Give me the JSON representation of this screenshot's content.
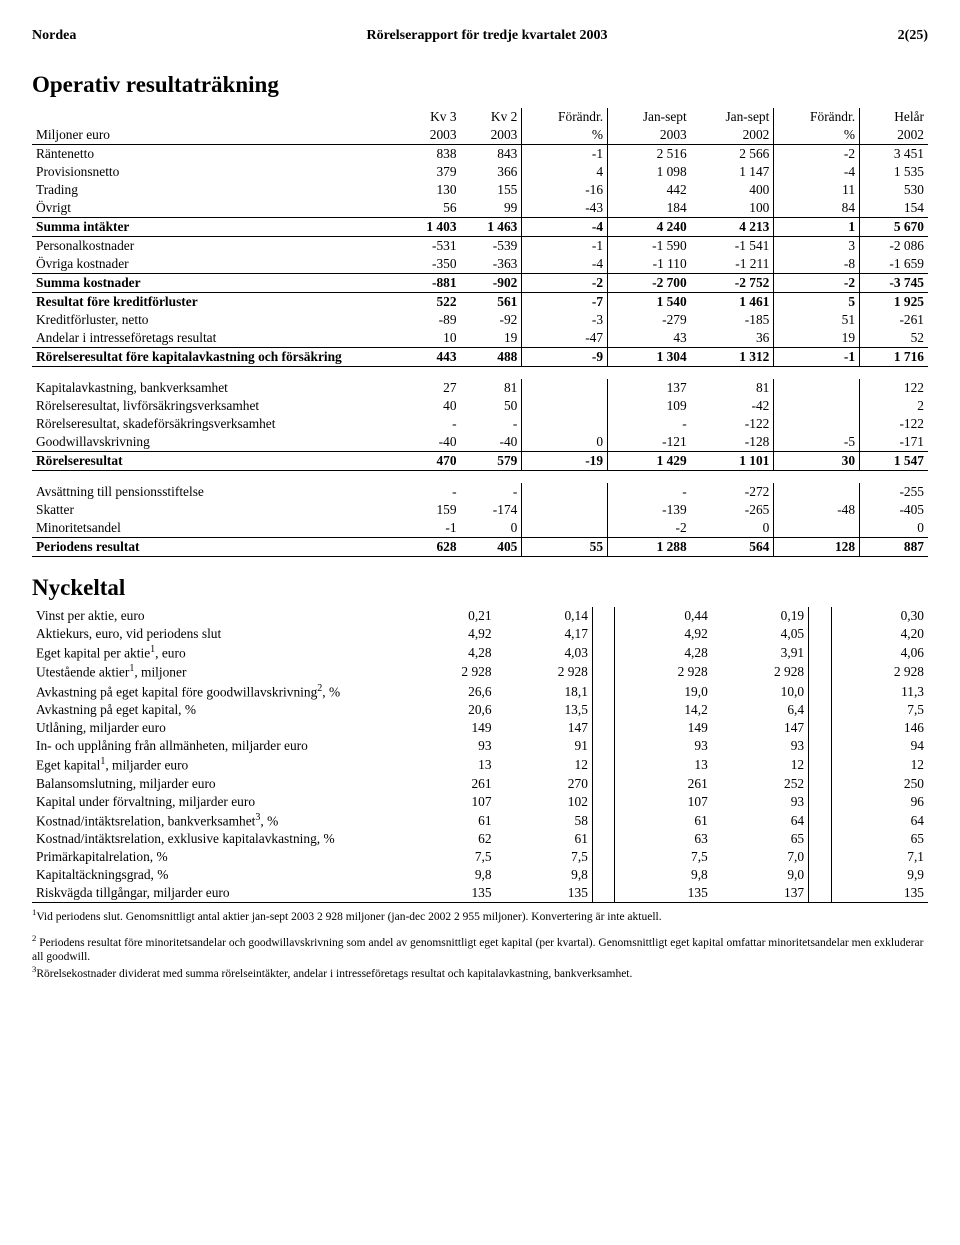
{
  "header": {
    "brand": "Nordea",
    "title": "Rörelserapport för tredje kvartalet 2003",
    "page": "2(25)"
  },
  "section_a": {
    "title": "Operativ resultaträkning",
    "col_headers_top": [
      "",
      "Kv 3",
      "Kv 2",
      "Förändr.",
      "Jan-sept",
      "Jan-sept",
      "Förändr.",
      "Helår"
    ],
    "col_headers_bottom": [
      "Miljoner euro",
      "2003",
      "2003",
      "%",
      "2003",
      "2002",
      "%",
      "2002"
    ],
    "rows": [
      {
        "label": "Räntenetto",
        "vals": [
          "838",
          "843",
          "-1",
          "2 516",
          "2 566",
          "-2",
          "3 451"
        ]
      },
      {
        "label": "Provisionsnetto",
        "vals": [
          "379",
          "366",
          "4",
          "1 098",
          "1 147",
          "-4",
          "1 535"
        ]
      },
      {
        "label": "Trading",
        "vals": [
          "130",
          "155",
          "-16",
          "442",
          "400",
          "11",
          "530"
        ]
      },
      {
        "label": "Övrigt",
        "vals": [
          "56",
          "99",
          "-43",
          "184",
          "100",
          "84",
          "154"
        ]
      },
      {
        "label": "Summa intäkter",
        "bold": true,
        "line": "both",
        "vals": [
          "1 403",
          "1 463",
          "-4",
          "4 240",
          "4 213",
          "1",
          "5 670"
        ]
      },
      {
        "label": "Personalkostnader",
        "vals": [
          "-531",
          "-539",
          "-1",
          "-1 590",
          "-1 541",
          "3",
          "-2 086"
        ]
      },
      {
        "label": "Övriga kostnader",
        "vals": [
          "-350",
          "-363",
          "-4",
          "-1 110",
          "-1 211",
          "-8",
          "-1 659"
        ]
      },
      {
        "label": "Summa kostnader",
        "bold": true,
        "line": "both",
        "vals": [
          "-881",
          "-902",
          "-2",
          "-2 700",
          "-2 752",
          "-2",
          "-3 745"
        ]
      },
      {
        "label": "Resultat före kreditförluster",
        "bold": true,
        "vals": [
          "522",
          "561",
          "-7",
          "1 540",
          "1 461",
          "5",
          "1 925"
        ]
      },
      {
        "label": "Kreditförluster, netto",
        "vals": [
          "-89",
          "-92",
          "-3",
          "-279",
          "-185",
          "51",
          "-261"
        ]
      },
      {
        "label": "Andelar i intresseföretags resultat",
        "vals": [
          "10",
          "19",
          "-47",
          "43",
          "36",
          "19",
          "52"
        ]
      },
      {
        "label": "Rörelseresultat före kapitalavkastning och försäkring",
        "bold": true,
        "line": "both",
        "vals": [
          "443",
          "488",
          "-9",
          "1 304",
          "1 312",
          "-1",
          "1 716"
        ]
      },
      {
        "gap": true
      },
      {
        "label": "Kapitalavkastning, bankverksamhet",
        "vals": [
          "27",
          "81",
          "",
          "137",
          "81",
          "",
          "122"
        ]
      },
      {
        "label": "Rörelseresultat, livförsäkringsverksamhet",
        "vals": [
          "40",
          "50",
          "",
          "109",
          "-42",
          "",
          "2"
        ]
      },
      {
        "label": "Rörelseresultat, skadeförsäkringsverksamhet",
        "vals": [
          "-",
          "-",
          "",
          "-",
          "-122",
          "",
          "-122"
        ]
      },
      {
        "label": "Goodwillavskrivning",
        "vals": [
          "-40",
          "-40",
          "0",
          "-121",
          "-128",
          "-5",
          "-171"
        ]
      },
      {
        "label": "Rörelseresultat",
        "bold": true,
        "line": "both",
        "vals": [
          "470",
          "579",
          "-19",
          "1 429",
          "1 101",
          "30",
          "1 547"
        ]
      },
      {
        "gap": true
      },
      {
        "label": "Avsättning till pensionsstiftelse",
        "vals": [
          "-",
          "-",
          "",
          "-",
          "-272",
          "",
          "-255"
        ]
      },
      {
        "label": "Skatter",
        "vals": [
          "159",
          "-174",
          "",
          "-139",
          "-265",
          "-48",
          "-405"
        ]
      },
      {
        "label": "Minoritetsandel",
        "vals": [
          "-1",
          "0",
          "",
          "-2",
          "0",
          "",
          "0"
        ]
      },
      {
        "label": "Periodens resultat",
        "bold": true,
        "line": "both",
        "vals": [
          "628",
          "405",
          "55",
          "1 288",
          "564",
          "128",
          "887"
        ]
      }
    ]
  },
  "section_b": {
    "title": "Nyckeltal",
    "rows": [
      {
        "label": "Vinst per aktie, euro",
        "vals": [
          "0,21",
          "0,14",
          "",
          "0,44",
          "0,19",
          "",
          "0,30"
        ]
      },
      {
        "label": "Aktiekurs, euro, vid periodens slut",
        "vals": [
          "4,92",
          "4,17",
          "",
          "4,92",
          "4,05",
          "",
          "4,20"
        ]
      },
      {
        "label_html": "Eget kapital per aktie<sup>1</sup>, euro",
        "vals": [
          "4,28",
          "4,03",
          "",
          "4,28",
          "3,91",
          "",
          "4,06"
        ]
      },
      {
        "label_html": "Utestående aktier<sup>1</sup>, miljoner",
        "vals": [
          "2 928",
          "2 928",
          "",
          "2 928",
          "2 928",
          "",
          "2 928"
        ]
      },
      {
        "label_html": "Avkastning på eget kapital före goodwillavskrivning<sup>2</sup>, %",
        "vals": [
          "26,6",
          "18,1",
          "",
          "19,0",
          "10,0",
          "",
          "11,3"
        ]
      },
      {
        "label": "Avkastning på eget kapital, %",
        "vals": [
          "20,6",
          "13,5",
          "",
          "14,2",
          "6,4",
          "",
          "7,5"
        ]
      },
      {
        "label": "Utlåning, miljarder euro",
        "vals": [
          "149",
          "147",
          "",
          "149",
          "147",
          "",
          "146"
        ]
      },
      {
        "label": "In- och upplåning från allmänheten, miljarder euro",
        "vals": [
          "93",
          "91",
          "",
          "93",
          "93",
          "",
          "94"
        ]
      },
      {
        "label_html": "Eget kapital<sup>1</sup>, miljarder euro",
        "vals": [
          "13",
          "12",
          "",
          "13",
          "12",
          "",
          "12"
        ]
      },
      {
        "label": "Balansomslutning, miljarder euro",
        "vals": [
          "261",
          "270",
          "",
          "261",
          "252",
          "",
          "250"
        ]
      },
      {
        "label": "Kapital under förvaltning, miljarder euro",
        "vals": [
          "107",
          "102",
          "",
          "107",
          "93",
          "",
          "96"
        ]
      },
      {
        "label_html": "Kostnad/intäktsrelation, bankverksamhet<sup>3</sup>, %",
        "vals": [
          "61",
          "58",
          "",
          "61",
          "64",
          "",
          "64"
        ]
      },
      {
        "label": "Kostnad/intäktsrelation, exklusive kapitalavkastning, %",
        "vals": [
          "62",
          "61",
          "",
          "63",
          "65",
          "",
          "65"
        ]
      },
      {
        "label": "Primärkapitalrelation, %",
        "vals": [
          "7,5",
          "7,5",
          "",
          "7,5",
          "7,0",
          "",
          "7,1"
        ]
      },
      {
        "label": "Kapitaltäckningsgrad, %",
        "vals": [
          "9,8",
          "9,8",
          "",
          "9,8",
          "9,0",
          "",
          "9,9"
        ]
      },
      {
        "label": "Riskvägda tillgångar, miljarder euro",
        "line": "bottom",
        "vals": [
          "135",
          "135",
          "",
          "135",
          "137",
          "",
          "135"
        ]
      }
    ]
  },
  "footnotes": {
    "f1": "Vid periodens slut. Genomsnittligt antal aktier jan-sept 2003 2 928 miljoner (jan-dec 2002 2 955 miljoner). Konvertering är inte aktuell.",
    "f2": "Periodens resultat före minoritetsandelar och goodwillavskrivning som andel av genomsnittligt eget kapital (per kvartal). Genomsnittligt eget kapital omfattar minoritetsandelar men exkluderar all goodwill.",
    "f3": "Rörelsekostnader dividerat med summa rörelseintäkter, andelar i intresseföretags resultat och kapitalavkastning, bankverksamhet."
  }
}
